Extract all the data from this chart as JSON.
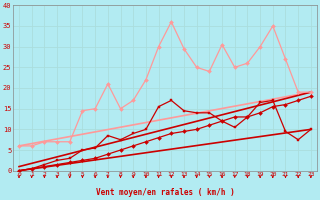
{
  "xlabel": "Vent moyen/en rafales ( km/h )",
  "bg_color": "#b2ebf2",
  "grid_color": "#aadddd",
  "xlim": [
    -0.5,
    23.5
  ],
  "ylim": [
    0,
    40
  ],
  "yticks": [
    0,
    5,
    10,
    15,
    20,
    25,
    30,
    35,
    40
  ],
  "xticks": [
    0,
    1,
    2,
    3,
    4,
    5,
    6,
    7,
    8,
    9,
    10,
    11,
    12,
    13,
    14,
    15,
    16,
    17,
    18,
    19,
    20,
    21,
    22,
    23
  ],
  "lines": [
    {
      "x": [
        0,
        1,
        2,
        3,
        4,
        5,
        6,
        7,
        8,
        9,
        10,
        11,
        12,
        13,
        14,
        15,
        16,
        17,
        18,
        19,
        20,
        21,
        22,
        23
      ],
      "y": [
        6,
        6,
        7,
        7,
        7,
        14.5,
        15,
        21,
        15,
        17,
        22,
        30,
        36,
        29.5,
        25,
        24,
        30.5,
        25,
        26,
        30,
        35,
        27,
        19,
        19
      ],
      "color": "#ff9999",
      "lw": 0.9,
      "marker": "D",
      "ms": 2.0,
      "zorder": 3
    },
    {
      "x": [
        0,
        23
      ],
      "y": [
        6,
        19
      ],
      "color": "#ff9999",
      "lw": 1.2,
      "marker": null,
      "ms": 0,
      "zorder": 2
    },
    {
      "x": [
        0,
        23
      ],
      "y": [
        1,
        19
      ],
      "color": "#cc0000",
      "lw": 1.2,
      "marker": null,
      "ms": 0,
      "zorder": 2
    },
    {
      "x": [
        0,
        1,
        2,
        3,
        4,
        5,
        6,
        7,
        8,
        9,
        10,
        11,
        12,
        13,
        14,
        15,
        16,
        17,
        18,
        19,
        20,
        21,
        22,
        23
      ],
      "y": [
        0,
        0.5,
        1.5,
        2.5,
        3,
        5,
        5.5,
        8.5,
        7.5,
        9,
        10,
        15.5,
        17,
        14.5,
        14,
        14,
        12,
        10.5,
        13,
        16.5,
        17,
        9.5,
        7.5,
        10
      ],
      "color": "#cc0000",
      "lw": 0.9,
      "marker": "s",
      "ms": 2.0,
      "zorder": 4
    },
    {
      "x": [
        0,
        1,
        2,
        3,
        4,
        5,
        6,
        7,
        8,
        9,
        10,
        11,
        12,
        13,
        14,
        15,
        16,
        17,
        18,
        19,
        20,
        21,
        22,
        23
      ],
      "y": [
        0,
        0.5,
        1,
        1.5,
        2,
        2.5,
        3,
        4,
        5,
        6,
        7,
        8,
        9,
        9.5,
        10,
        11,
        12,
        13,
        13,
        14,
        15.5,
        16,
        17,
        18
      ],
      "color": "#cc0000",
      "lw": 0.9,
      "marker": "D",
      "ms": 2.0,
      "zorder": 3
    },
    {
      "x": [
        0,
        23
      ],
      "y": [
        0,
        10
      ],
      "color": "#cc0000",
      "lw": 1.2,
      "marker": null,
      "ms": 0,
      "zorder": 2
    }
  ]
}
